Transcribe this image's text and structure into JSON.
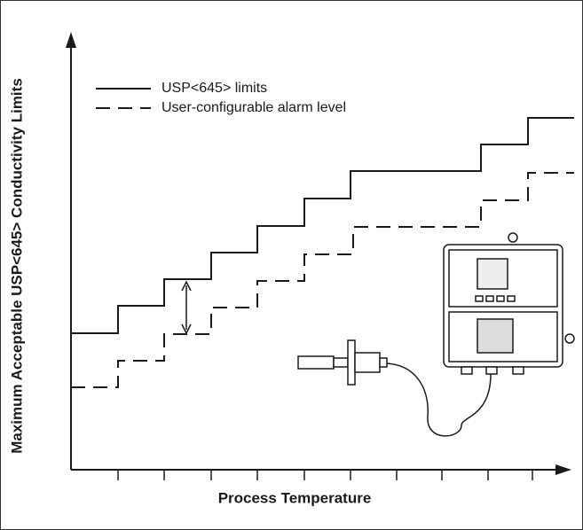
{
  "axes": {
    "y_label": "Maximum Acceptable USP<645> Conductivity Limits",
    "x_label": "Process Temperature"
  },
  "legend": {
    "items": [
      {
        "label": "USP<645> limits"
      },
      {
        "label": "User-configurable alarm level"
      }
    ]
  }
}
